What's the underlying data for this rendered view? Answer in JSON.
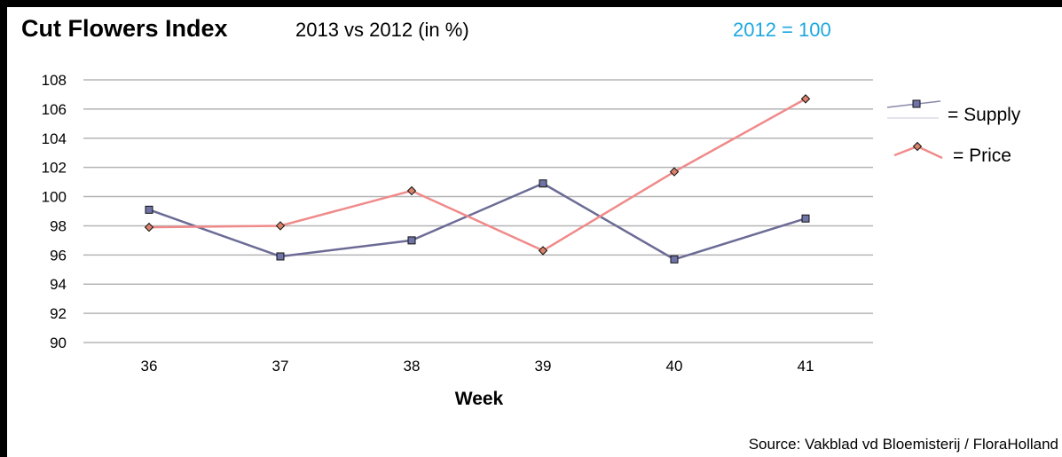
{
  "header": {
    "title": "Cut Flowers Index",
    "subtitle": "2013 vs 2012 (in %)",
    "baseline_note": "2012 = 100",
    "baseline_color": "#1ea7e0"
  },
  "footer": {
    "source": "Source: Vakblad vd Bloemisterij / FloraHolland"
  },
  "chart_data": {
    "type": "line",
    "title": "Cut Flowers Index",
    "xlabel": "Week",
    "ylabel": "",
    "categories": [
      "36",
      "37",
      "38",
      "39",
      "40",
      "41"
    ],
    "ylim": [
      90,
      108
    ],
    "yticks": [
      "90",
      "92",
      "94",
      "96",
      "98",
      "100",
      "102",
      "104",
      "106",
      "108"
    ],
    "grid": true,
    "legend_position": "right",
    "series": [
      {
        "name": "= Supply",
        "values": [
          99.1,
          95.9,
          97.0,
          100.9,
          95.7,
          98.5
        ],
        "color": "#6b6b96",
        "marker": "square",
        "marker_fill": "#6f73a6"
      },
      {
        "name": "= Price",
        "values": [
          97.9,
          98.0,
          100.4,
          96.3,
          101.7,
          106.7
        ],
        "color": "#f08a8a",
        "marker": "diamond",
        "marker_fill": "#d9826a"
      }
    ]
  }
}
